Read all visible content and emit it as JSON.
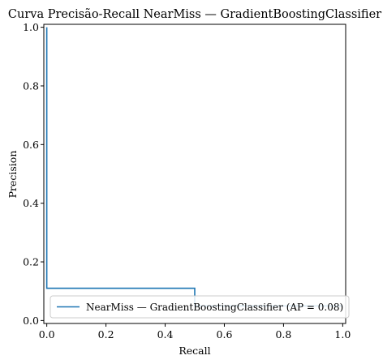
{
  "chart_data": {
    "type": "line",
    "title": "Curva Precisão-Recall NearMiss — GradientBoostingClassifier",
    "xlabel": "Recall",
    "ylabel": "Precision",
    "xlim": [
      -0.01,
      1.01
    ],
    "ylim": [
      -0.01,
      1.01
    ],
    "xticks": [
      0.0,
      0.2,
      0.4,
      0.6,
      0.8,
      1.0
    ],
    "yticks": [
      0.0,
      0.2,
      0.4,
      0.6,
      0.8,
      1.0
    ],
    "xtick_labels": [
      "0.0",
      "0.2",
      "0.4",
      "0.6",
      "0.8",
      "1.0"
    ],
    "ytick_labels": [
      "0.0",
      "0.2",
      "0.4",
      "0.6",
      "0.8",
      "1.0"
    ],
    "grid": false,
    "legend_position": "lower-right",
    "series": [
      {
        "name": "NearMiss — GradientBoostingClassifier (AP = 0.08)",
        "color": "#1f77b4",
        "drawstyle": "steps-post",
        "x": [
          0.0,
          0.0,
          0.0,
          0.5,
          0.5,
          1.0
        ],
        "y": [
          1.0,
          1.0,
          0.11,
          0.11,
          0.05,
          0.05
        ]
      }
    ]
  }
}
